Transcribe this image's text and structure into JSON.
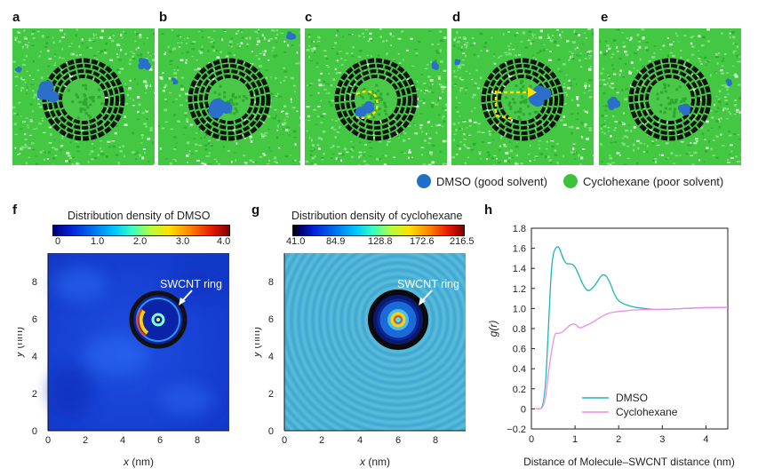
{
  "panels_top": [
    {
      "label": "a"
    },
    {
      "label": "b"
    },
    {
      "label": "c"
    },
    {
      "label": "d"
    },
    {
      "label": "e"
    }
  ],
  "legend": {
    "dmso": "DMSO (good solvent)",
    "cyclohexane": "Cyclohexane (poor solvent)",
    "dmso_color": "#1f6fc4",
    "cyclohexane_color": "#3cc23c"
  },
  "panel_f": {
    "label": "f",
    "colorbar_title": "Distribution density of DMSO",
    "colorbar_ticks": [
      "0",
      "1.0",
      "2.0",
      "3.0",
      "4.0"
    ],
    "annotation": "SWCNT ring",
    "xlabel_var": "x",
    "xlabel_unit": " (nm)",
    "ylabel_var": "y",
    "ylabel_unit": " (nm)",
    "xticks": [
      "0",
      "2",
      "4",
      "6",
      "8"
    ],
    "yticks": [
      "0",
      "2",
      "4",
      "6",
      "8"
    ]
  },
  "panel_g": {
    "label": "g",
    "colorbar_title": "Distribution density of cyclohexane",
    "colorbar_ticks": [
      "41.0",
      "84.9",
      "128.8",
      "172.6",
      "216.5"
    ],
    "annotation": "SWCNT ring",
    "xlabel_var": "x",
    "xlabel_unit": " (nm)",
    "ylabel_var": "y",
    "ylabel_unit": " (nm)",
    "xticks": [
      "0",
      "2",
      "4",
      "6",
      "8"
    ],
    "yticks": [
      "0",
      "2",
      "4",
      "6",
      "8"
    ]
  },
  "chart_data": {
    "type": "line",
    "panel_label": "h",
    "title": "",
    "xlabel": "Distance of Molecule–SWCNT distance (nm)",
    "ylabel": "g(r)",
    "xlim": [
      0,
      4.5
    ],
    "ylim": [
      -0.2,
      1.8
    ],
    "xticks": [
      0,
      1,
      2,
      3,
      4
    ],
    "yticks": [
      -0.2,
      0,
      0.2,
      0.4,
      0.6,
      0.8,
      1.0,
      1.2,
      1.4,
      1.6,
      1.8
    ],
    "grid": false,
    "legend_position": "bottom-right",
    "series": [
      {
        "name": "DMSO",
        "color": "#1fb3b8",
        "x": [
          0.1,
          0.3,
          0.4,
          0.45,
          0.5,
          0.55,
          0.6,
          0.65,
          0.7,
          0.8,
          0.9,
          1.0,
          1.1,
          1.2,
          1.3,
          1.4,
          1.5,
          1.6,
          1.7,
          1.8,
          1.9,
          2.0,
          2.2,
          2.4,
          2.6,
          2.8,
          3.0,
          3.5,
          4.0,
          4.5
        ],
        "y": [
          0,
          0,
          0.9,
          1.35,
          1.55,
          1.6,
          1.62,
          1.6,
          1.52,
          1.44,
          1.45,
          1.42,
          1.32,
          1.22,
          1.17,
          1.2,
          1.26,
          1.33,
          1.34,
          1.26,
          1.14,
          1.07,
          1.03,
          1.01,
          1.0,
          0.99,
          0.99,
          1.0,
          1.01,
          1.01
        ]
      },
      {
        "name": "Cyclohexane",
        "color": "#e98fe6",
        "x": [
          0.1,
          0.3,
          0.4,
          0.5,
          0.55,
          0.6,
          0.7,
          0.8,
          0.9,
          1.0,
          1.1,
          1.2,
          1.4,
          1.6,
          1.8,
          2.0,
          2.2,
          2.5,
          3.0,
          3.5,
          4.0,
          4.5
        ],
        "y": [
          0,
          0,
          0.4,
          0.68,
          0.76,
          0.75,
          0.76,
          0.8,
          0.84,
          0.85,
          0.8,
          0.82,
          0.86,
          0.92,
          0.96,
          0.97,
          0.98,
          0.99,
          0.99,
          1.0,
          1.01,
          1.01
        ]
      }
    ],
    "yticks_labels": [
      "−0.2",
      "0",
      "0.2",
      "0.4",
      "0.6",
      "0.8",
      "1.0",
      "1.2",
      "1.4",
      "1.6",
      "1.8"
    ],
    "xticks_labels": [
      "0",
      "1",
      "2",
      "3",
      "4"
    ]
  }
}
